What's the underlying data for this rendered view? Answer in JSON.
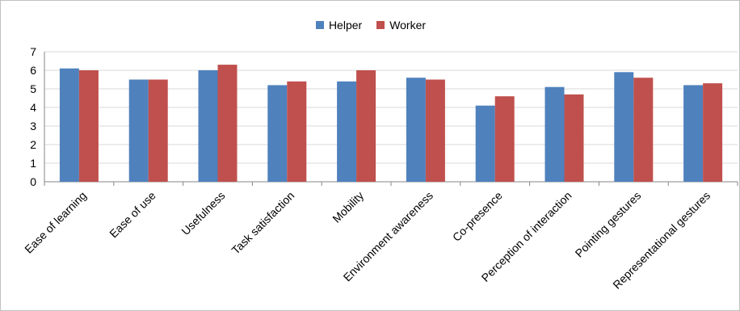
{
  "chart_data": {
    "type": "bar",
    "title": "",
    "xlabel": "",
    "ylabel": "",
    "ylim": [
      0,
      7
    ],
    "yticks": [
      0,
      1,
      2,
      3,
      4,
      5,
      6,
      7
    ],
    "grid": true,
    "legend_position": "top",
    "categories": [
      "Ease of learning",
      "Ease of use",
      "Usefulness",
      "Task satisfaction",
      "Mobility",
      "Environment awareness",
      "Co-presence",
      "Perception of interaction",
      "Pointing gestures",
      "Representational gestures"
    ],
    "series": [
      {
        "name": "Helper",
        "color": "#4f81bd",
        "values": [
          6.1,
          5.5,
          6.0,
          5.2,
          5.4,
          5.6,
          4.1,
          5.1,
          5.9,
          5.2
        ]
      },
      {
        "name": "Worker",
        "color": "#c0504d",
        "values": [
          6.0,
          5.5,
          6.3,
          5.4,
          6.0,
          5.5,
          4.6,
          4.7,
          5.6,
          5.3
        ]
      }
    ]
  }
}
